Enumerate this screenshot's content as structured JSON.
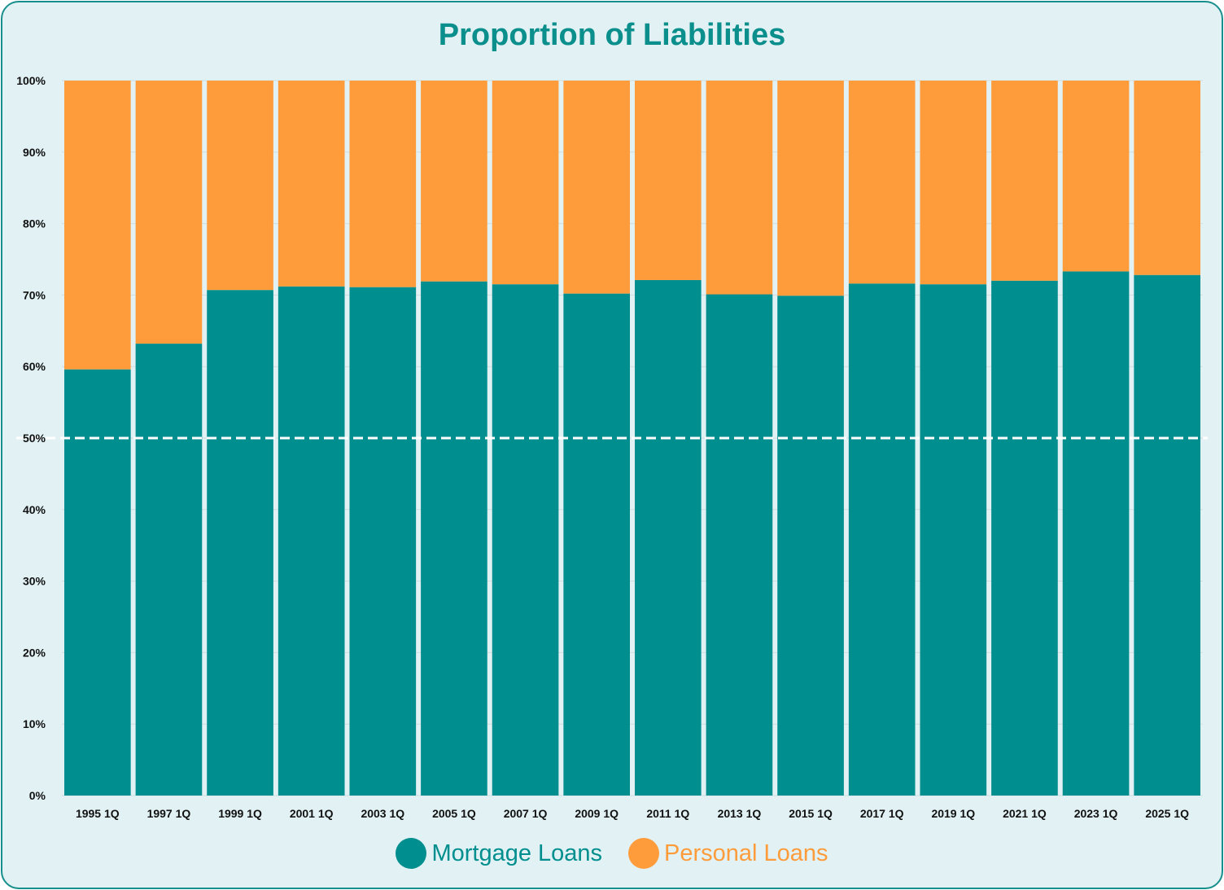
{
  "colors": {
    "mortgage": "#008e8e",
    "personal": "#fe9c3c",
    "title": "#0b8f8c",
    "panel": "#e1f1f4"
  },
  "chart_data": {
    "type": "bar",
    "stacked": true,
    "title": "Proportion of Liabilities",
    "xlabel": "",
    "ylabel": "",
    "ylim": [
      0,
      100
    ],
    "y_ticks": [
      "0%",
      "10%",
      "20%",
      "30%",
      "40%",
      "50%",
      "60%",
      "70%",
      "80%",
      "90%",
      "100%"
    ],
    "categories": [
      "1995 1Q",
      "1997 1Q",
      "1999 1Q",
      "2001 1Q",
      "2003 1Q",
      "2005 1Q",
      "2007 1Q",
      "2009 1Q",
      "2011 1Q",
      "2013 1Q",
      "2015 1Q",
      "2017 1Q",
      "2019 1Q",
      "2021 1Q",
      "2023 1Q",
      "2025 1Q"
    ],
    "series": [
      {
        "name": "Mortgage Loans",
        "values": [
          59.6,
          63.2,
          70.7,
          71.2,
          71.1,
          71.9,
          71.5,
          70.2,
          72.1,
          70.1,
          69.9,
          71.6,
          71.5,
          72.0,
          73.3,
          72.8
        ]
      },
      {
        "name": "Personal Loans",
        "values": [
          40.4,
          36.8,
          29.3,
          28.8,
          28.9,
          28.1,
          28.5,
          29.8,
          27.9,
          29.9,
          30.1,
          28.4,
          28.5,
          28.0,
          26.7,
          27.2
        ]
      }
    ],
    "reference_line": {
      "value": 50,
      "style": "dashed"
    },
    "grid": true,
    "legend_position": "bottom-center"
  }
}
